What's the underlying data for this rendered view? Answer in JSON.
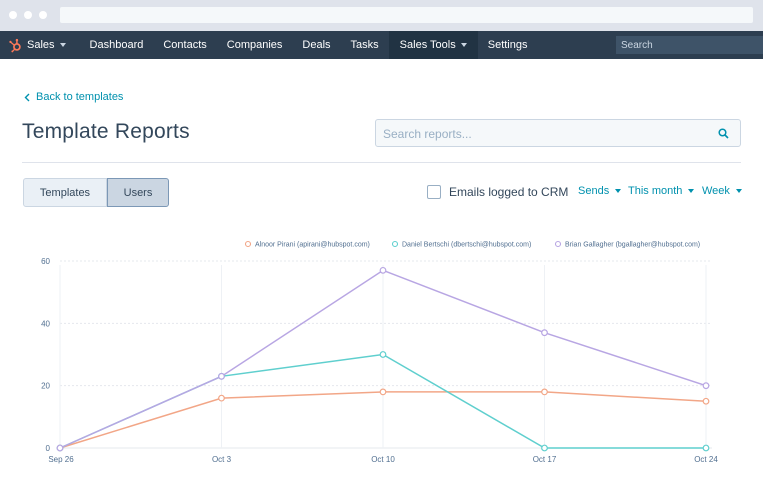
{
  "browser": {},
  "nav": {
    "brand_label": "Sales",
    "items": [
      "Dashboard",
      "Contacts",
      "Companies",
      "Deals",
      "Tasks",
      "Sales Tools",
      "Settings"
    ],
    "active_item": "Sales Tools",
    "search_placeholder": "Search"
  },
  "page": {
    "back_label": "Back to templates",
    "title": "Template Reports",
    "search_placeholder": "Search reports..."
  },
  "toggle": {
    "templates_label": "Templates",
    "users_label": "Users",
    "selected": "Users"
  },
  "filters": {
    "checkbox_label": "Emails logged to CRM",
    "checkbox_checked": false,
    "metric": "Sends",
    "range": "This month",
    "interval": "Week"
  },
  "colors": {
    "accent": "#0091ae",
    "nav_bg": "#2d3e50",
    "series_orange": "#f2a687",
    "series_teal": "#5fcfce",
    "series_purple": "#b8a6e3"
  },
  "chart_data": {
    "type": "line",
    "x": [
      "Sep 26",
      "Oct 3",
      "Oct 10",
      "Oct 17",
      "Oct 24"
    ],
    "ylim": [
      0,
      60
    ],
    "yticks": [
      0,
      20,
      40,
      60
    ],
    "legend_position": "top-right",
    "series": [
      {
        "name": "Alnoor Pirani (apirani@hubspot.com)",
        "color": "#f2a687",
        "values": [
          0,
          16,
          18,
          18,
          15
        ]
      },
      {
        "name": "Daniel Bertschi (dbertschi@hubspot.com)",
        "color": "#5fcfce",
        "values": [
          0,
          23,
          30,
          0,
          0
        ]
      },
      {
        "name": "Brian Gallagher (bgallagher@hubspot.com)",
        "color": "#b8a6e3",
        "values": [
          0,
          23,
          57,
          37,
          20
        ]
      }
    ]
  }
}
